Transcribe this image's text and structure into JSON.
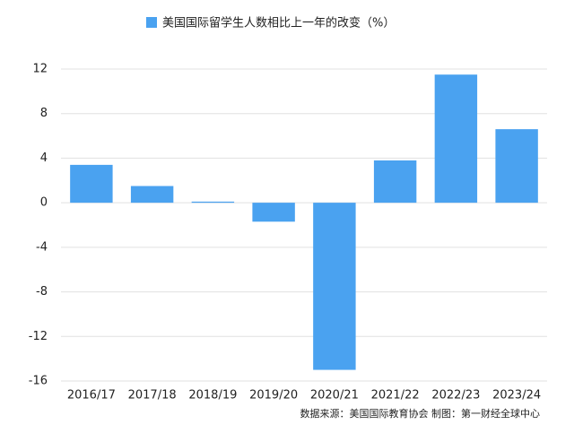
{
  "chart_data": {
    "type": "bar",
    "categories": [
      "2016/17",
      "2017/18",
      "2018/19",
      "2019/20",
      "2020/21",
      "2021/22",
      "2022/23",
      "2023/24"
    ],
    "series": [
      {
        "name": "美国国际留学生人数相比上一年的改变（%）",
        "color": "#4aa2f0",
        "values": [
          3.4,
          1.5,
          0.1,
          -1.7,
          -15.0,
          3.8,
          11.5,
          6.6
        ]
      }
    ],
    "ylim": [
      -16,
      12
    ],
    "yticks": [
      -16,
      -12,
      -8,
      -4,
      0,
      4,
      8,
      12
    ],
    "grid": true,
    "legend": "top",
    "source": "数据来源：美国国际教育协会 制图：第一财经全球中心"
  }
}
